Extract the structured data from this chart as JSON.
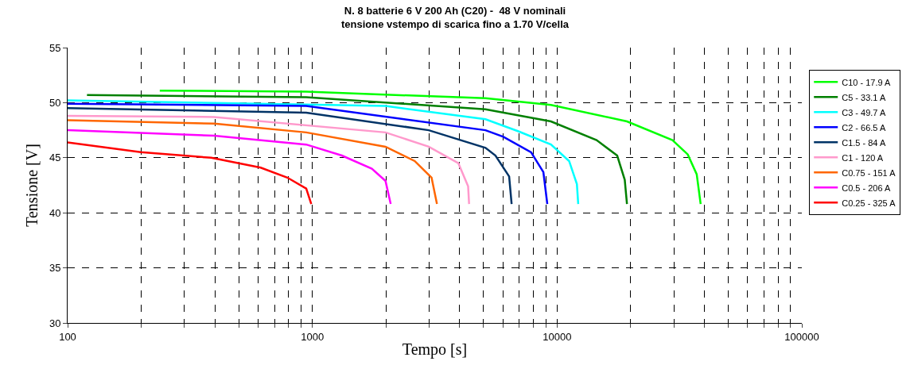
{
  "chart_data": {
    "type": "line",
    "title": "N. 8 batterie 6 V 200 Ah (C20) -  48 V nominali\ntensione vstempo di scarica fino a 1.70 V/cella",
    "xlabel": "Tempo [s]",
    "ylabel": "Tensione [V]",
    "log": "x",
    "grid": true,
    "legend": "right",
    "marker": "none",
    "line_style": "solid",
    "xlim": [
      100,
      100000
    ],
    "ylim": [
      30,
      55
    ],
    "xticks": [
      100,
      {
        "value": 200,
        "label": null
      },
      {
        "value": 300,
        "label": null
      },
      {
        "value": 400,
        "label": null
      },
      {
        "value": 500,
        "label": null
      },
      {
        "value": 600,
        "label": null
      },
      {
        "value": 700,
        "label": null
      },
      {
        "value": 800,
        "label": null
      },
      {
        "value": 900,
        "label": null
      },
      1000,
      {
        "value": 2000,
        "label": null
      },
      {
        "value": 3000,
        "label": null
      },
      {
        "value": 4000,
        "label": null
      },
      {
        "value": 5000,
        "label": null
      },
      {
        "value": 6000,
        "label": null
      },
      {
        "value": 7000,
        "label": null
      },
      {
        "value": 8000,
        "label": null
      },
      {
        "value": 9000,
        "label": null
      },
      10000,
      {
        "value": 20000,
        "label": null
      },
      {
        "value": 30000,
        "label": null
      },
      {
        "value": 40000,
        "label": null
      },
      {
        "value": 50000,
        "label": null
      },
      {
        "value": 60000,
        "label": null
      },
      {
        "value": 70000,
        "label": null
      },
      {
        "value": 80000,
        "label": null
      },
      {
        "value": 90000,
        "label": null
      },
      100000
    ],
    "yticks": [
      30,
      35,
      40,
      45,
      50,
      55
    ],
    "series": [
      {
        "name": "C10 - 17.9 A",
        "color": "#00ff00",
        "x": [
          238,
          944,
          5100,
          9440,
          19300,
          29600,
          34200,
          37200,
          38600
        ],
        "values": [
          51.1,
          51.0,
          50.4,
          49.8,
          48.3,
          46.6,
          45.3,
          43.5,
          40.8
        ]
      },
      {
        "name": "C5 - 33.1 A",
        "color": "#008000",
        "x": [
          120,
          944,
          5100,
          9440,
          14500,
          17600,
          18900,
          19300
        ],
        "values": [
          50.7,
          50.5,
          49.4,
          48.3,
          46.6,
          45.2,
          43.0,
          40.8
        ]
      },
      {
        "name": "C3 - 49.7 A",
        "color": "#00ffff",
        "x": [
          100,
          1990,
          5100,
          6950,
          9440,
          11200,
          12050,
          12200
        ],
        "values": [
          50.2,
          49.7,
          48.5,
          47.4,
          46.2,
          44.7,
          42.6,
          40.8
        ]
      },
      {
        "name": "C2 - 66.5 A",
        "color": "#0000ff",
        "x": [
          100,
          944,
          5100,
          6030,
          7830,
          8790,
          9120
        ],
        "values": [
          49.9,
          49.7,
          47.5,
          46.9,
          45.5,
          43.7,
          40.8
        ]
      },
      {
        "name": "C1.5 - 84 A",
        "color": "#003366",
        "x": [
          100,
          944,
          2990,
          5100,
          5600,
          6370,
          6520
        ],
        "values": [
          49.5,
          49.1,
          47.5,
          45.9,
          45.2,
          43.3,
          40.8
        ]
      },
      {
        "name": "C1 - 120 A",
        "color": "#ff99cc",
        "x": [
          100,
          397,
          1990,
          2990,
          3950,
          4330,
          4370
        ],
        "values": [
          48.8,
          48.7,
          47.3,
          46.0,
          44.5,
          42.4,
          40.8
        ]
      },
      {
        "name": "C0.75 - 151 A",
        "color": "#ff6600",
        "x": [
          100,
          397,
          944,
          1990,
          2620,
          3070,
          3230
        ],
        "values": [
          48.4,
          48.1,
          47.3,
          46.0,
          44.7,
          43.2,
          40.8
        ]
      },
      {
        "name": "C0.5 - 206 A",
        "color": "#ff00ff",
        "x": [
          100,
          397,
          944,
          1320,
          1750,
          1990,
          2090
        ],
        "values": [
          47.5,
          47.0,
          46.2,
          45.2,
          44.0,
          42.9,
          40.8
        ]
      },
      {
        "name": "C0.25 - 325 A",
        "color": "#ff0000",
        "x": [
          100,
          199,
          386,
          615,
          790,
          944,
          990
        ],
        "values": [
          46.4,
          45.5,
          45.0,
          44.1,
          43.2,
          42.2,
          40.8
        ]
      }
    ]
  }
}
